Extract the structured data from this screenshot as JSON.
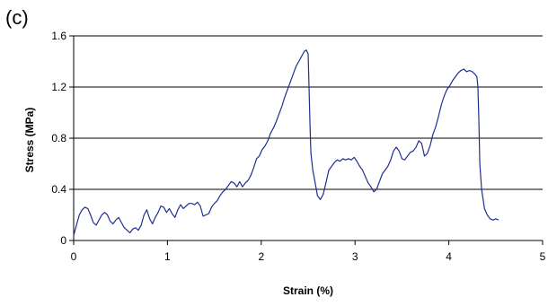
{
  "panel_label": "(c)",
  "chart_data": {
    "type": "line",
    "title": "",
    "xlabel": "Strain (%)",
    "ylabel": "Stress (MPa)",
    "xlim": [
      0,
      5
    ],
    "ylim": [
      0,
      1.6
    ],
    "xticks": [
      "0",
      "1",
      "2",
      "3",
      "4",
      "5"
    ],
    "yticks": [
      "0",
      "0.4",
      "0.8",
      "1.2",
      "1.6"
    ],
    "grid": "horizontal",
    "legend": "none",
    "series": [
      {
        "color": "#1f2f8f",
        "x": [
          0.0,
          0.03,
          0.06,
          0.09,
          0.12,
          0.15,
          0.18,
          0.21,
          0.24,
          0.27,
          0.3,
          0.33,
          0.36,
          0.39,
          0.42,
          0.45,
          0.48,
          0.51,
          0.54,
          0.57,
          0.6,
          0.63,
          0.66,
          0.69,
          0.72,
          0.75,
          0.78,
          0.81,
          0.84,
          0.87,
          0.9,
          0.93,
          0.96,
          0.99,
          1.02,
          1.05,
          1.08,
          1.11,
          1.14,
          1.17,
          1.2,
          1.23,
          1.26,
          1.29,
          1.32,
          1.35,
          1.38,
          1.41,
          1.44,
          1.47,
          1.5,
          1.53,
          1.56,
          1.59,
          1.62,
          1.65,
          1.68,
          1.71,
          1.74,
          1.77,
          1.8,
          1.83,
          1.86,
          1.89,
          1.92,
          1.95,
          1.98,
          2.01,
          2.04,
          2.07,
          2.1,
          2.13,
          2.16,
          2.19,
          2.22,
          2.25,
          2.28,
          2.31,
          2.34,
          2.37,
          2.4,
          2.43,
          2.46,
          2.48,
          2.5,
          2.51,
          2.52,
          2.53,
          2.55,
          2.57,
          2.6,
          2.63,
          2.66,
          2.69,
          2.72,
          2.75,
          2.78,
          2.81,
          2.84,
          2.87,
          2.9,
          2.93,
          2.96,
          2.99,
          3.02,
          3.05,
          3.08,
          3.11,
          3.14,
          3.17,
          3.2,
          3.23,
          3.26,
          3.29,
          3.32,
          3.35,
          3.38,
          3.41,
          3.44,
          3.47,
          3.5,
          3.53,
          3.56,
          3.59,
          3.62,
          3.65,
          3.68,
          3.71,
          3.74,
          3.77,
          3.8,
          3.83,
          3.86,
          3.89,
          3.92,
          3.95,
          3.98,
          4.01,
          4.04,
          4.07,
          4.1,
          4.13,
          4.16,
          4.19,
          4.22,
          4.25,
          4.28,
          4.3,
          4.31,
          4.32,
          4.33,
          4.35,
          4.38,
          4.41,
          4.44,
          4.47,
          4.5,
          4.53
        ],
        "y": [
          0.04,
          0.12,
          0.2,
          0.24,
          0.26,
          0.25,
          0.2,
          0.14,
          0.12,
          0.16,
          0.2,
          0.22,
          0.2,
          0.15,
          0.13,
          0.16,
          0.18,
          0.14,
          0.1,
          0.08,
          0.06,
          0.09,
          0.1,
          0.08,
          0.12,
          0.2,
          0.24,
          0.17,
          0.13,
          0.18,
          0.22,
          0.27,
          0.26,
          0.22,
          0.25,
          0.21,
          0.18,
          0.24,
          0.28,
          0.25,
          0.27,
          0.29,
          0.29,
          0.28,
          0.3,
          0.27,
          0.19,
          0.2,
          0.21,
          0.26,
          0.29,
          0.31,
          0.35,
          0.38,
          0.4,
          0.43,
          0.46,
          0.45,
          0.42,
          0.46,
          0.42,
          0.45,
          0.47,
          0.51,
          0.57,
          0.64,
          0.66,
          0.71,
          0.74,
          0.78,
          0.84,
          0.88,
          0.93,
          0.99,
          1.05,
          1.12,
          1.18,
          1.24,
          1.3,
          1.36,
          1.4,
          1.44,
          1.48,
          1.49,
          1.46,
          1.2,
          0.9,
          0.68,
          0.55,
          0.47,
          0.35,
          0.32,
          0.36,
          0.45,
          0.55,
          0.58,
          0.61,
          0.63,
          0.62,
          0.64,
          0.63,
          0.64,
          0.63,
          0.65,
          0.62,
          0.58,
          0.55,
          0.5,
          0.45,
          0.42,
          0.38,
          0.4,
          0.46,
          0.52,
          0.55,
          0.58,
          0.63,
          0.7,
          0.73,
          0.7,
          0.64,
          0.63,
          0.66,
          0.69,
          0.7,
          0.73,
          0.78,
          0.76,
          0.66,
          0.68,
          0.74,
          0.83,
          0.89,
          0.97,
          1.06,
          1.13,
          1.18,
          1.21,
          1.25,
          1.28,
          1.31,
          1.33,
          1.34,
          1.32,
          1.33,
          1.32,
          1.3,
          1.28,
          1.2,
          0.95,
          0.6,
          0.4,
          0.25,
          0.2,
          0.17,
          0.16,
          0.17,
          0.16
        ]
      }
    ]
  }
}
